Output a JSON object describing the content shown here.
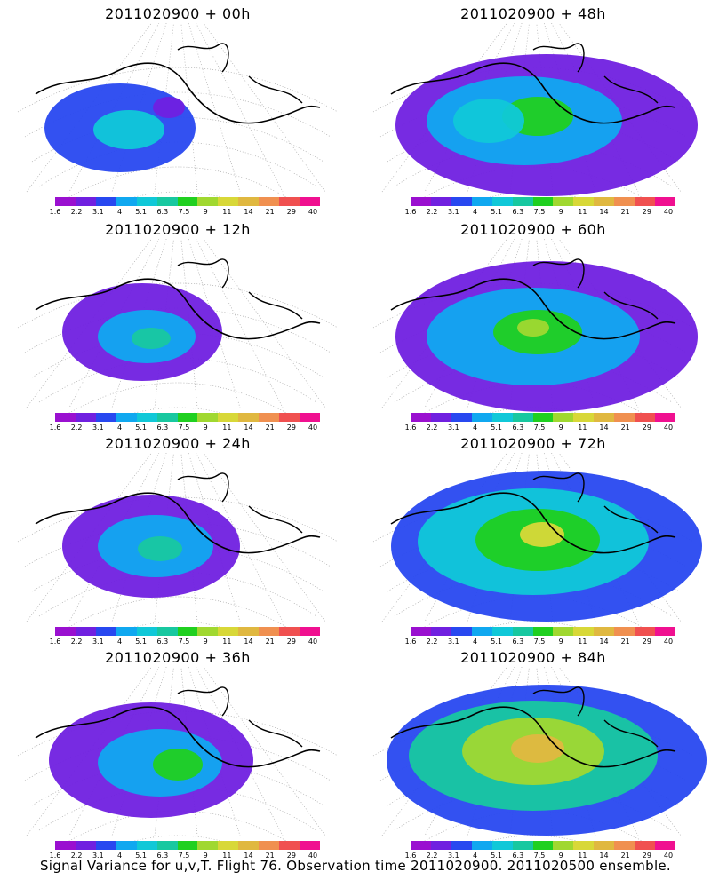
{
  "caption": "Signal Variance for u,v,T. Flight 76. Observation time 2011020900. 2011020500 ensemble.",
  "colorbar": {
    "labels": [
      "1.6",
      "2.2",
      "3.1",
      "4",
      "5.1",
      "6.3",
      "7.5",
      "9",
      "11",
      "14",
      "21",
      "29",
      "40"
    ],
    "colors": [
      "#9a10d0",
      "#7020e0",
      "#2848f0",
      "#10a8f0",
      "#10c8d8",
      "#18c8a0",
      "#20d020",
      "#a0d830",
      "#d8d838",
      "#e0b840",
      "#f09050",
      "#f05050",
      "#f01090"
    ]
  },
  "panels": [
    {
      "title": "2011020900 + 00h"
    },
    {
      "title": "2011020900 + 48h"
    },
    {
      "title": "2011020900 + 12h"
    },
    {
      "title": "2011020900 + 60h"
    },
    {
      "title": "2011020900 + 24h"
    },
    {
      "title": "2011020900 + 72h"
    },
    {
      "title": "2011020900 + 36h"
    },
    {
      "title": "2011020900 + 84h"
    }
  ]
}
